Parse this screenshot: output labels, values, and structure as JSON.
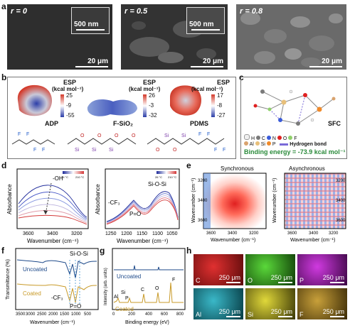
{
  "panels": {
    "a": "a",
    "b": "b",
    "c": "c",
    "d": "d",
    "e": "e",
    "f": "f",
    "g": "g",
    "h": "h"
  },
  "sem": [
    {
      "r_label": "r = 0",
      "inset_scale": "500 nm",
      "scale": "20 μm"
    },
    {
      "r_label": "r = 0.5",
      "inset_scale": "500 nm",
      "scale": "20 μm"
    },
    {
      "r_label": "r = 0.8",
      "inset_scale": "500 nm",
      "scale": "20 μm"
    }
  ],
  "esp": {
    "molecules": [
      {
        "name": "ADP",
        "esp_label": "ESP",
        "unit": "(kcal mol⁻¹)",
        "max": "25",
        "mid": "-9",
        "min": "-55"
      },
      {
        "name": "F-SiO₂",
        "esp_label": "ESP",
        "unit": "(kcal mol⁻¹)",
        "max": "26",
        "mid": "-3",
        "min": "-32"
      },
      {
        "name": "PDMS",
        "esp_label": "ESP",
        "unit": "(kcal mol⁻¹)",
        "max": "17",
        "mid": "-8",
        "min": "-27"
      }
    ]
  },
  "sfc": {
    "label": "SFC",
    "legend_atoms": [
      "H",
      "C",
      "N",
      "O",
      "F",
      "Al",
      "Si",
      "P"
    ],
    "atom_colors": [
      "#f0f0f0",
      "#7a7a7a",
      "#3a5bd9",
      "#e02020",
      "#8fd06a",
      "#d9a36e",
      "#e8c07a",
      "#f08a2a"
    ],
    "hbond_label": "Hydrogen bond",
    "binding_energy": "Binding energy = -73.9 kcal mol⁻¹"
  },
  "ftir_d": {
    "left": {
      "ylabel": "Absorbance",
      "xlabel": "Wavenumber (cm⁻¹)",
      "xticks": [
        "3600",
        "3400",
        "3200"
      ],
      "annotation": "-OH",
      "legend_low": "26 °C",
      "legend_high": "210 °C"
    },
    "right": {
      "ylabel": "Absorbance",
      "xlabel": "Wavenumber (cm⁻¹)",
      "xticks": [
        "1250",
        "1200",
        "1150",
        "1100",
        "1050"
      ],
      "annotations": [
        "Si-O-Si",
        "-CF₃",
        "P=O"
      ],
      "legend_low": "26 °C",
      "legend_high": "210 °C"
    }
  },
  "corr_e": {
    "sync": {
      "title": "Synchronous",
      "xlabel": "Wavenumber (cm⁻¹)",
      "ylabel": "Wavenumber (cm⁻¹)",
      "xticks": [
        "3600",
        "3400",
        "3200"
      ],
      "yticks": [
        "3200",
        "3400",
        "3600"
      ]
    },
    "async": {
      "title": "Asynchronous",
      "xlabel": "Wavenumber (cm⁻¹)",
      "ylabel": "Wavenumber (cm⁻¹)",
      "xticks": [
        "3600",
        "3400",
        "3200"
      ],
      "yticks": [
        "3200",
        "3400",
        "3600"
      ]
    }
  },
  "ftir_f": {
    "ylabel": "Transmittance (%)",
    "xlabel": "Wavenumber (cm⁻¹)",
    "xticks": [
      "3500",
      "3000",
      "2500",
      "2000",
      "1500",
      "1000",
      "500"
    ],
    "series": [
      "Uncoated",
      "Coated"
    ],
    "annotations": [
      "Si-O-Si",
      "-CF₃",
      "P=O"
    ]
  },
  "xps_g": {
    "ylabel": "Intensity (arb. units)",
    "xlabel": "Binding energy (eV)",
    "xticks": [
      "0",
      "200",
      "400",
      "600",
      "800"
    ],
    "series": [
      "Uncoated",
      "Coated"
    ],
    "peaks": [
      "Al",
      "Si",
      "P",
      "C",
      "O",
      "F"
    ]
  },
  "eds_h": [
    {
      "element": "C",
      "scale": "250 μm",
      "color": "#c01818"
    },
    {
      "element": "O",
      "scale": "250 μm",
      "color": "#3fb81e"
    },
    {
      "element": "P",
      "scale": "250 μm",
      "color": "#b01ec0"
    },
    {
      "element": "Al",
      "scale": "250 μm",
      "color": "#1e9aa8"
    },
    {
      "element": "Si",
      "scale": "250 μm",
      "color": "#c9c21e"
    },
    {
      "element": "F",
      "scale": "250 μm",
      "color": "#b08a24"
    }
  ]
}
